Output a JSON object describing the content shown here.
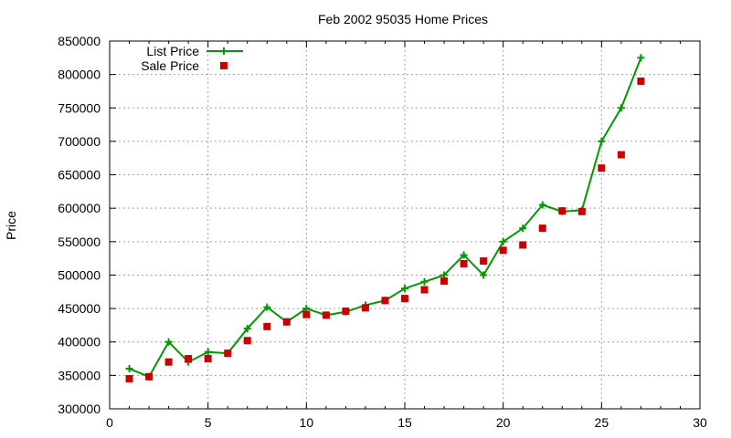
{
  "chart_data": {
    "type": "line",
    "title": "Feb 2002 95035 Home Prices",
    "xlabel": "",
    "ylabel": "Price",
    "xlim": [
      0,
      30
    ],
    "ylim": [
      300000,
      850000
    ],
    "x_ticks": [
      "0",
      "5",
      "10",
      "15",
      "20",
      "25",
      "30"
    ],
    "y_ticks": [
      "300000",
      "350000",
      "400000",
      "450000",
      "500000",
      "550000",
      "600000",
      "650000",
      "700000",
      "750000",
      "800000",
      "850000"
    ],
    "grid": true,
    "legend_position": "top-left",
    "x": [
      1,
      2,
      3,
      4,
      5,
      6,
      7,
      8,
      9,
      10,
      11,
      12,
      13,
      14,
      15,
      16,
      17,
      18,
      19,
      20,
      21,
      22,
      23,
      24,
      25,
      26,
      27
    ],
    "series": [
      {
        "name": "List Price",
        "style": "line+cross",
        "color": "#009900",
        "values": [
          360000,
          348000,
          400000,
          370000,
          385000,
          383000,
          420000,
          452000,
          430000,
          450000,
          440000,
          445000,
          455000,
          462000,
          480000,
          490000,
          500000,
          530000,
          500000,
          550000,
          570000,
          605000,
          595000,
          597000,
          700000,
          750000,
          825000
        ]
      },
      {
        "name": "Sale Price",
        "style": "square",
        "color": "#cc0000",
        "values": [
          345000,
          348000,
          370000,
          375000,
          375000,
          383000,
          402000,
          423000,
          430000,
          441000,
          440000,
          446000,
          451000,
          462000,
          465000,
          478000,
          491000,
          517000,
          521000,
          537000,
          545000,
          570000,
          596000,
          595000,
          660000,
          680000,
          790000
        ]
      }
    ]
  }
}
